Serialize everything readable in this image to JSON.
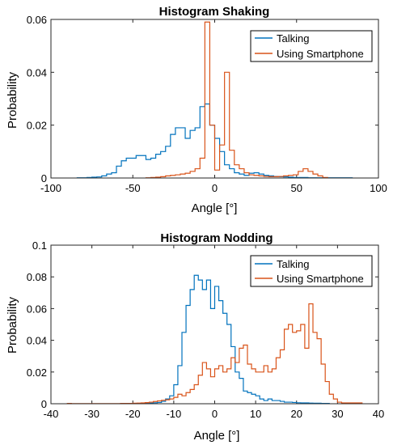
{
  "colors": {
    "talking": "#0072BD",
    "smartphone": "#D95319"
  },
  "chart_data": [
    {
      "type": "histogram",
      "title": "Histogram Shaking",
      "xlabel": "Angle [°]",
      "ylabel": "Probability",
      "xlim": [
        -100,
        100
      ],
      "ylim": [
        0,
        0.06
      ],
      "xticks": [
        "-100",
        "-50",
        "0",
        "50",
        "100"
      ],
      "xtick_values": [
        -100,
        -50,
        0,
        50,
        100
      ],
      "yticks": [
        "0",
        "0.02",
        "0.04",
        "0.06"
      ],
      "ytick_values": [
        0,
        0.02,
        0.04,
        0.06
      ],
      "legend": {
        "position": "top-right",
        "entries": [
          "Talking",
          "Using Smartphone"
        ]
      },
      "series": [
        {
          "name": "Talking",
          "edges": [
            -84,
            -81,
            -78,
            -75,
            -72,
            -69,
            -66,
            -63,
            -60,
            -57,
            -54,
            -51,
            -48,
            -45,
            -42,
            -39,
            -36,
            -33,
            -30,
            -27,
            -24,
            -21,
            -18,
            -15,
            -12,
            -9,
            -6,
            -3,
            0,
            3,
            6,
            9,
            12,
            15,
            18,
            21,
            24,
            27,
            30,
            33,
            36,
            39,
            42,
            45,
            48,
            51,
            54,
            57,
            60,
            63,
            66,
            69,
            72,
            75,
            78,
            81,
            84
          ],
          "values": [
            0.0001,
            0.0001,
            0.0002,
            0.0003,
            0.0004,
            0.0008,
            0.0015,
            0.002,
            0.0045,
            0.0065,
            0.0075,
            0.0075,
            0.0085,
            0.0085,
            0.007,
            0.0075,
            0.009,
            0.01,
            0.012,
            0.0165,
            0.019,
            0.019,
            0.015,
            0.018,
            0.019,
            0.027,
            0.028,
            0.02,
            0.015,
            0.01,
            0.005,
            0.0035,
            0.002,
            0.0015,
            0.001,
            0.0018,
            0.002,
            0.0015,
            0.001,
            0.0008,
            0.0006,
            0.0005,
            0.0004,
            0.0003,
            0.0002,
            0.0002,
            0.0002,
            0.0001,
            0.0001,
            0.0001,
            0.0001,
            0.0001,
            0.0001,
            0.0001,
            0.0001,
            0.0001
          ]
        },
        {
          "name": "Using Smartphone",
          "edges": [
            -42,
            -39,
            -36,
            -33,
            -30,
            -27,
            -24,
            -21,
            -18,
            -15,
            -12,
            -9,
            -6,
            -3,
            0,
            3,
            6,
            9,
            12,
            15,
            18,
            21,
            24,
            27,
            30,
            33,
            36,
            39,
            42,
            45,
            48,
            51,
            54,
            57,
            60,
            63,
            66,
            69
          ],
          "values": [
            0.0001,
            0.0002,
            0.0003,
            0.0005,
            0.0008,
            0.001,
            0.0012,
            0.0015,
            0.0018,
            0.0025,
            0.0035,
            0.0075,
            0.059,
            0.02,
            0.003,
            0.0125,
            0.04,
            0.0105,
            0.005,
            0.0035,
            0.002,
            0.0012,
            0.001,
            0.0008,
            0.0006,
            0.0005,
            0.0005,
            0.0006,
            0.0008,
            0.001,
            0.0012,
            0.0025,
            0.0035,
            0.0025,
            0.0015,
            0.0008,
            0.0002
          ]
        }
      ]
    },
    {
      "type": "histogram",
      "title": "Histogram Nodding",
      "xlabel": "Angle [°]",
      "ylabel": "Probability",
      "xlim": [
        -40,
        40
      ],
      "ylim": [
        0,
        0.1
      ],
      "xticks": [
        "-40",
        "-30",
        "-20",
        "-10",
        "0",
        "10",
        "20",
        "30",
        "40"
      ],
      "xtick_values": [
        -40,
        -30,
        -20,
        -10,
        0,
        10,
        20,
        30,
        40
      ],
      "yticks": [
        "0",
        "0.02",
        "0.04",
        "0.06",
        "0.08",
        "0.1"
      ],
      "ytick_values": [
        0,
        0.02,
        0.04,
        0.06,
        0.08,
        0.1
      ],
      "legend": {
        "position": "top-right",
        "entries": [
          "Talking",
          "Using Smartphone"
        ]
      },
      "series": [
        {
          "name": "Talking",
          "edges": [
            -18,
            -17,
            -16,
            -15,
            -14,
            -13,
            -12,
            -11,
            -10,
            -9,
            -8,
            -7,
            -6,
            -5,
            -4,
            -3,
            -2,
            -1,
            0,
            1,
            2,
            3,
            4,
            5,
            6,
            7,
            8,
            9,
            10,
            11,
            12,
            13,
            14,
            15,
            16,
            17,
            18,
            19,
            20,
            21,
            22,
            23,
            24,
            25,
            26,
            27,
            28
          ],
          "values": [
            0.0002,
            0.0003,
            0.0004,
            0.0006,
            0.0008,
            0.0015,
            0.003,
            0.005,
            0.012,
            0.024,
            0.045,
            0.062,
            0.072,
            0.081,
            0.078,
            0.072,
            0.078,
            0.06,
            0.074,
            0.065,
            0.057,
            0.05,
            0.036,
            0.02,
            0.016,
            0.008,
            0.007,
            0.006,
            0.005,
            0.003,
            0.002,
            0.003,
            0.002,
            0.002,
            0.0015,
            0.001,
            0.001,
            0.0008,
            0.0006,
            0.0005,
            0.0005,
            0.0004,
            0.0003,
            0.0003,
            0.0002,
            0.0002
          ]
        },
        {
          "name": "Using Smartphone",
          "edges": [
            -36,
            -35,
            -34,
            -33,
            -32,
            -31,
            -30,
            -29,
            -28,
            -27,
            -26,
            -25,
            -24,
            -23,
            -22,
            -21,
            -20,
            -19,
            -18,
            -17,
            -16,
            -15,
            -14,
            -13,
            -12,
            -11,
            -10,
            -9,
            -8,
            -7,
            -6,
            -5,
            -4,
            -3,
            -2,
            -1,
            0,
            1,
            2,
            3,
            4,
            5,
            6,
            7,
            8,
            9,
            10,
            11,
            12,
            13,
            14,
            15,
            16,
            17,
            18,
            19,
            20,
            21,
            22,
            23,
            24,
            25,
            26,
            27,
            28,
            29,
            30,
            31,
            32,
            33,
            34,
            35,
            36
          ],
          "values": [
            0.0002,
            0.0001,
            0.0001,
            0.0001,
            0.0001,
            0.0001,
            0.0001,
            0.0001,
            0.0001,
            0.0001,
            0.0001,
            0.0001,
            0.0001,
            0.0002,
            0.0002,
            0.0002,
            0.0003,
            0.0004,
            0.0005,
            0.0007,
            0.001,
            0.0014,
            0.0018,
            0.0022,
            0.0025,
            0.003,
            0.004,
            0.006,
            0.005,
            0.007,
            0.009,
            0.012,
            0.018,
            0.026,
            0.022,
            0.017,
            0.022,
            0.024,
            0.02,
            0.022,
            0.029,
            0.026,
            0.035,
            0.037,
            0.025,
            0.022,
            0.02,
            0.02,
            0.024,
            0.02,
            0.022,
            0.029,
            0.034,
            0.047,
            0.05,
            0.045,
            0.046,
            0.05,
            0.035,
            0.063,
            0.045,
            0.041,
            0.025,
            0.014,
            0.006,
            0.003,
            0.001,
            0.0005,
            0.0005,
            0.0005,
            0.0005,
            0.0005
          ]
        }
      ]
    }
  ]
}
